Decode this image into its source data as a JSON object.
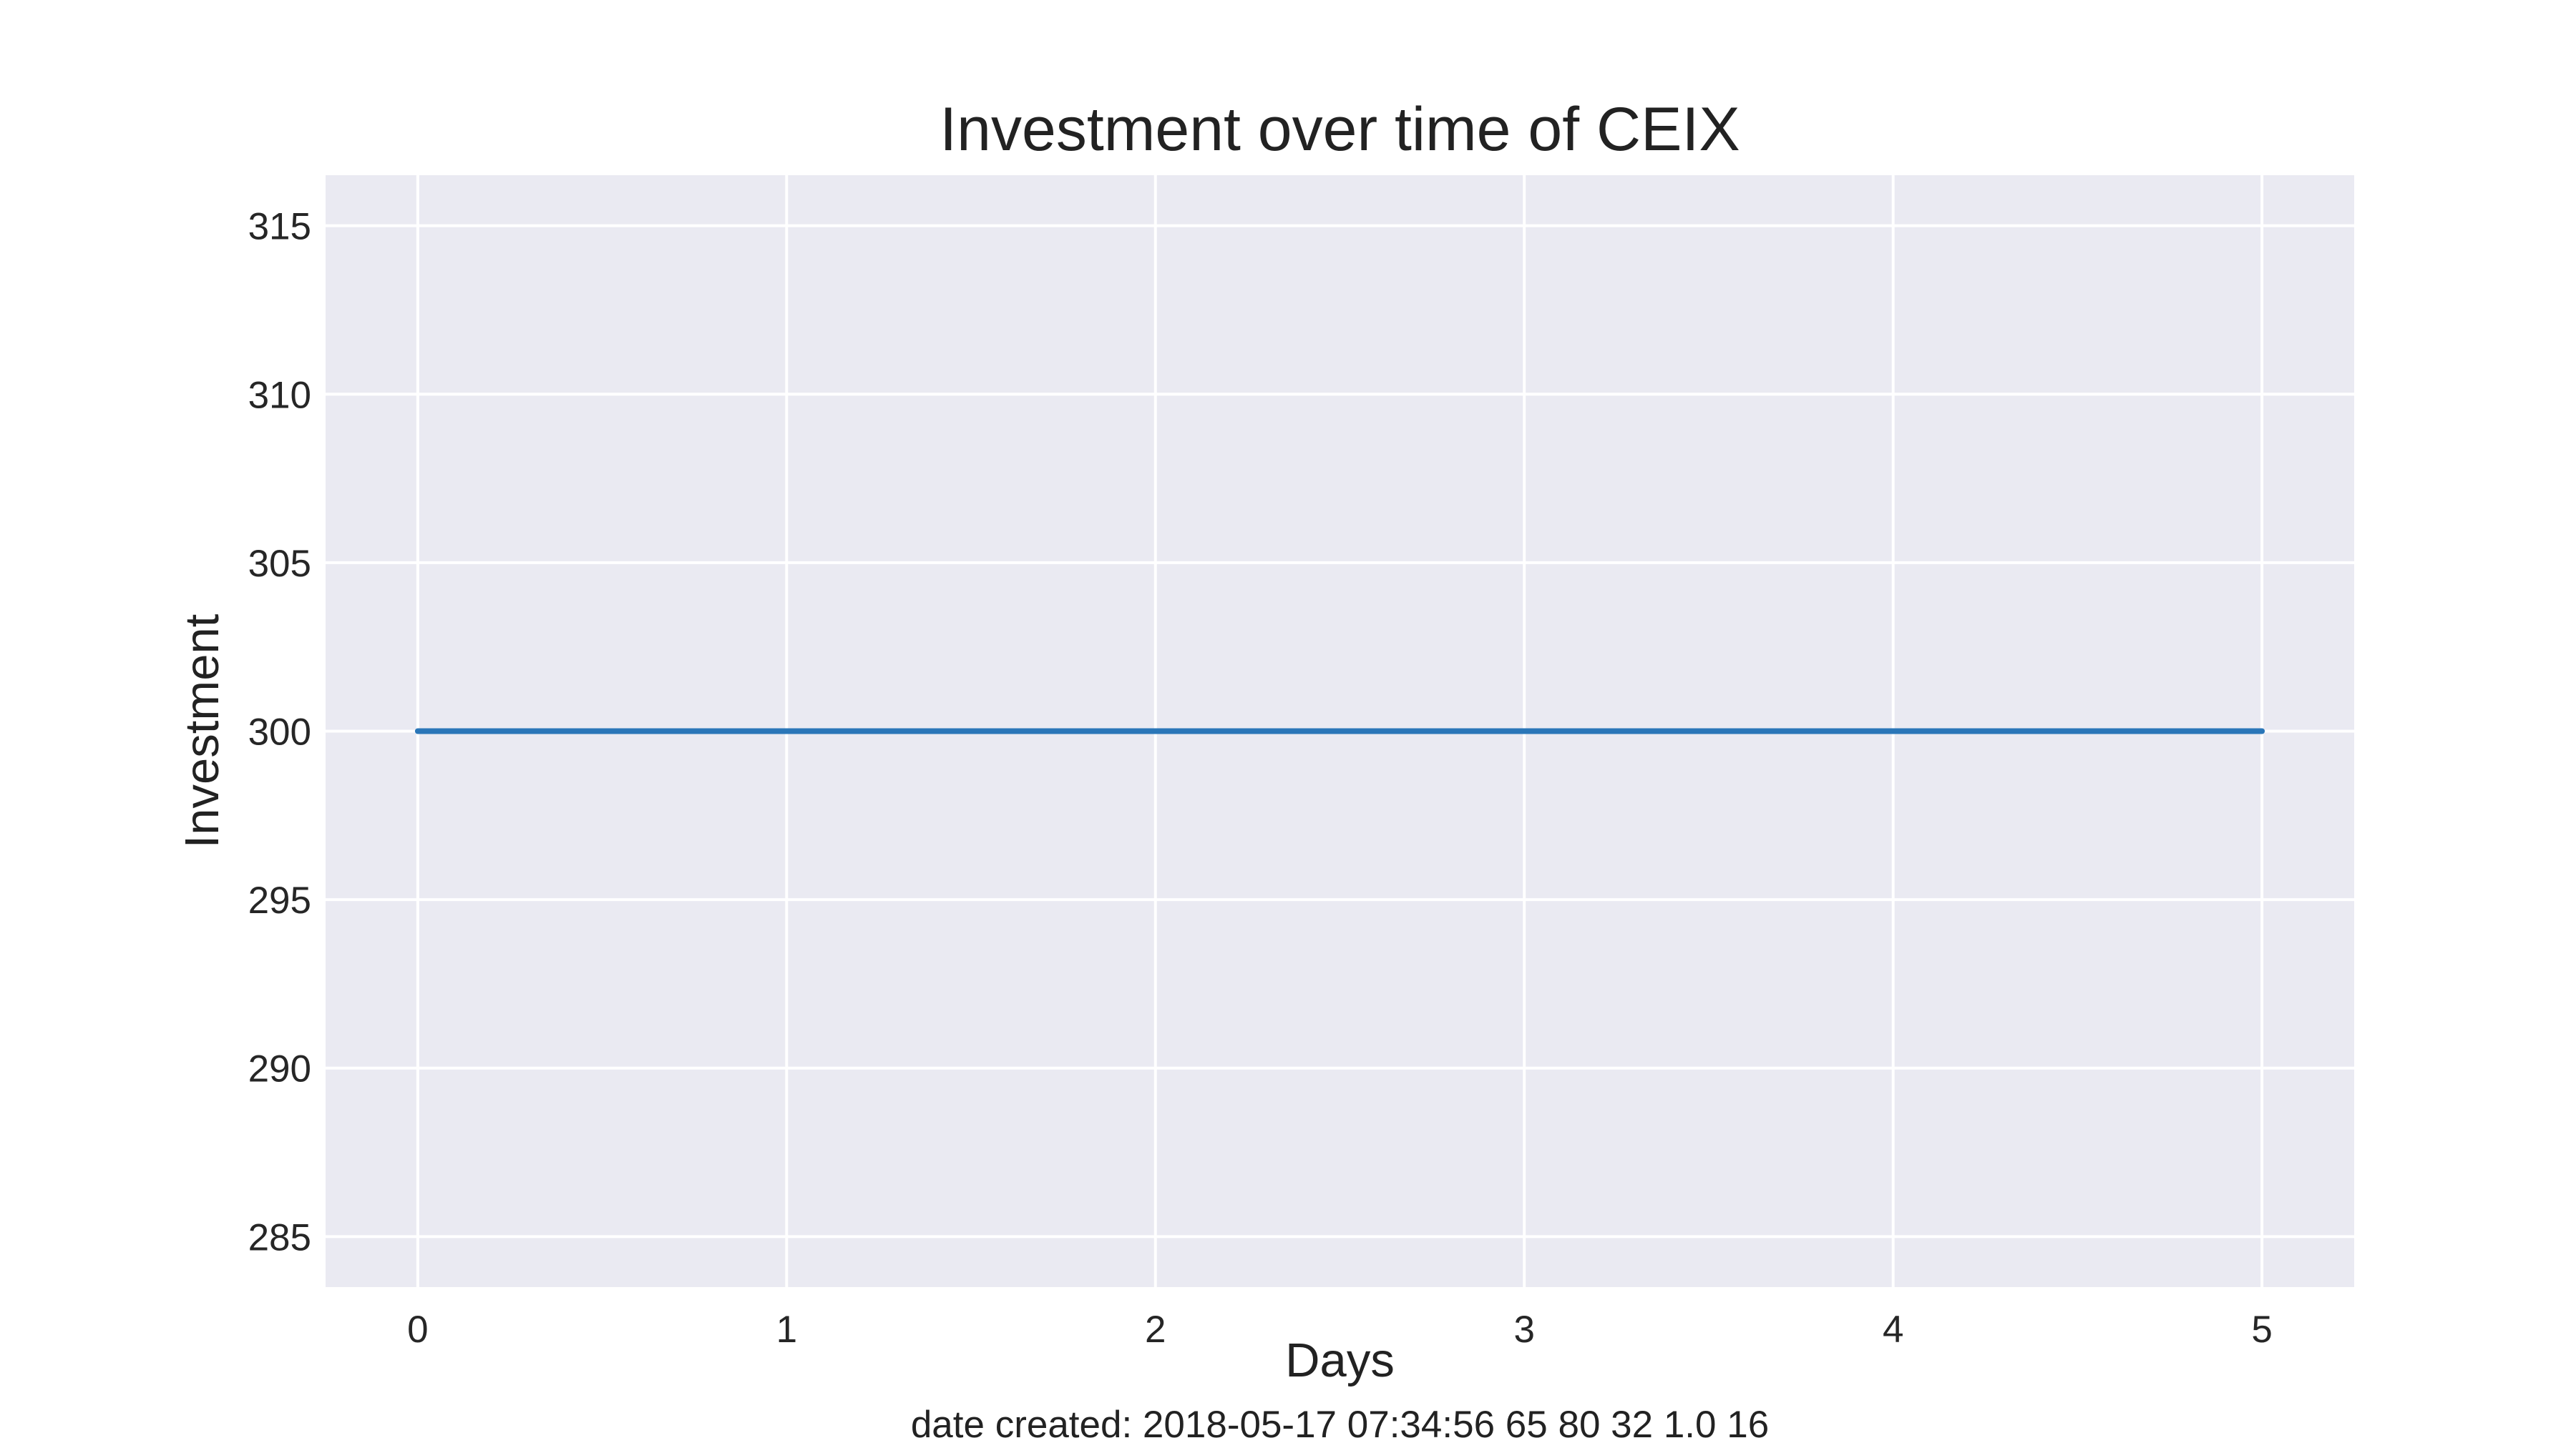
{
  "chart_data": {
    "type": "line",
    "title": "Investment over time of CEIX",
    "xlabel": "Days",
    "ylabel": "Investment",
    "x": [
      0,
      1,
      2,
      3,
      4,
      5
    ],
    "series": [
      {
        "values": [
          300,
          300,
          300,
          300,
          300,
          300
        ]
      }
    ],
    "xlim": [
      -0.25,
      5.25
    ],
    "ylim": [
      283.5,
      316.5
    ],
    "xticks": [
      "0",
      "1",
      "2",
      "3",
      "4",
      "5"
    ],
    "yticks": [
      "285",
      "290",
      "295",
      "300",
      "305",
      "310",
      "315"
    ],
    "grid": true,
    "legend": "none"
  },
  "footer": {
    "text": "date created: 2018-05-17 07:34:56 65 80 32 1.0 16"
  },
  "colors": {
    "line": "#2a76b8",
    "plot_background": "#eaeaf2",
    "grid": "#ffffff",
    "text": "#222222"
  }
}
